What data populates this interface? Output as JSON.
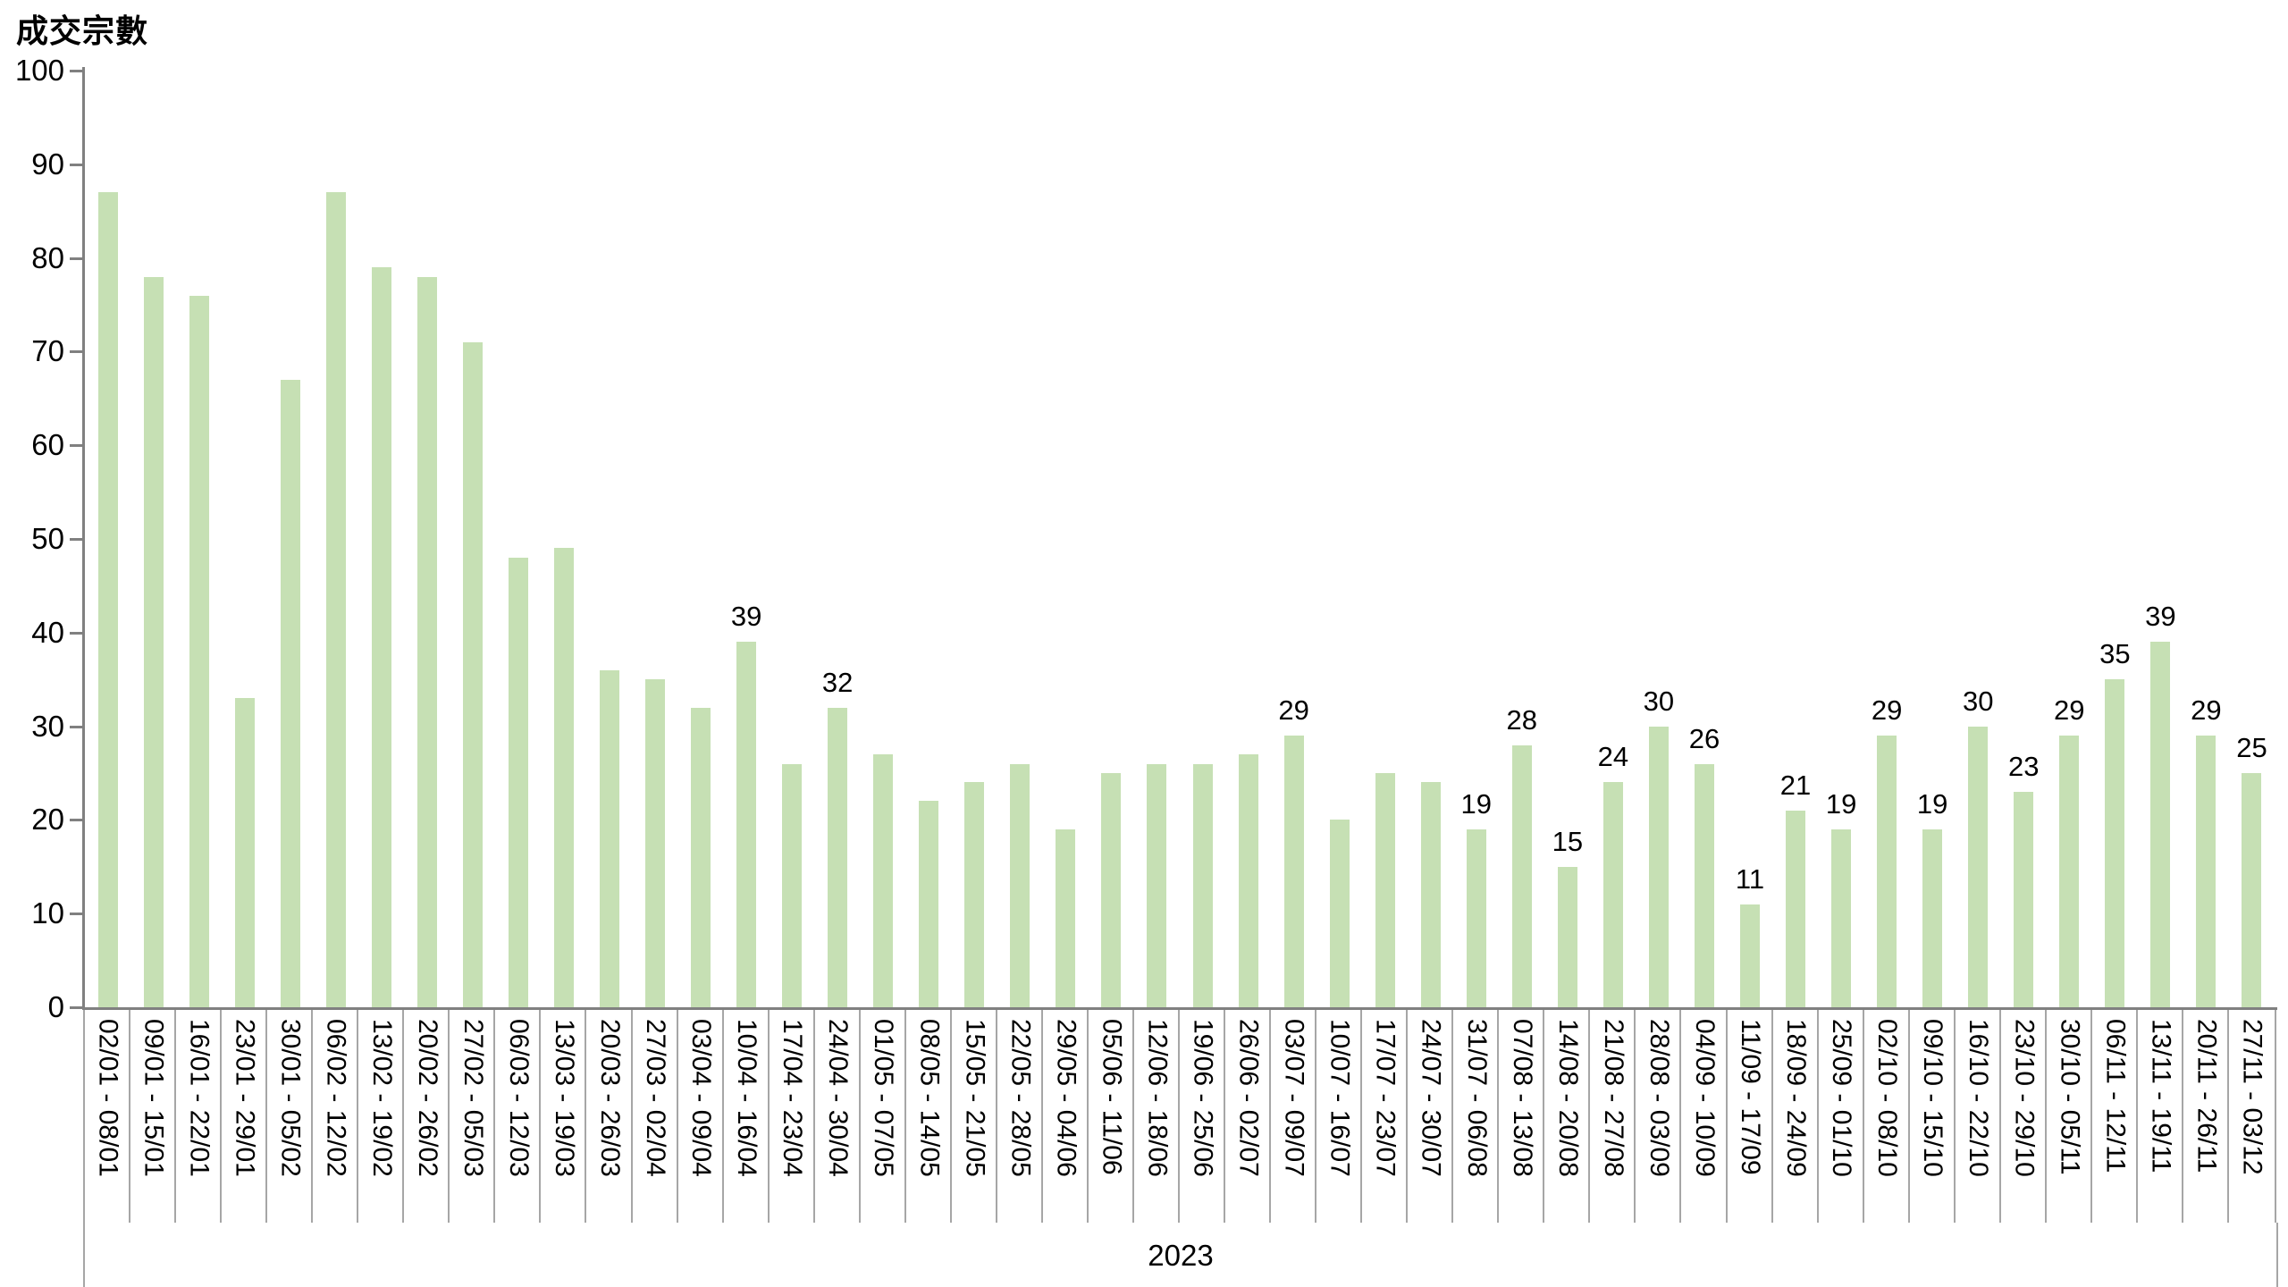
{
  "title": "成交宗數",
  "chart_data": {
    "type": "bar",
    "title": "成交宗數",
    "ylabel": "成交宗數",
    "xlabel": "2023",
    "ylim": [
      0,
      100
    ],
    "ytick_interval": 10,
    "grid": false,
    "legend": "none",
    "bar_color": "#c6e0b4",
    "axis_color": "#808080",
    "separator_color": "#a6a6a6",
    "categories": [
      "02/01 - 08/01",
      "09/01 - 15/01",
      "16/01 - 22/01",
      "23/01 - 29/01",
      "30/01 - 05/02",
      "06/02 - 12/02",
      "13/02 - 19/02",
      "20/02 - 26/02",
      "27/02 - 05/03",
      "06/03 - 12/03",
      "13/03 - 19/03",
      "20/03 - 26/03",
      "27/03 - 02/04",
      "03/04 - 09/04",
      "10/04 - 16/04",
      "17/04 - 23/04",
      "24/04 - 30/04",
      "01/05 - 07/05",
      "08/05 - 14/05",
      "15/05 - 21/05",
      "22/05 - 28/05",
      "29/05 - 04/06",
      "05/06 - 11/06",
      "12/06 - 18/06",
      "19/06 - 25/06",
      "26/06 - 02/07",
      "03/07 - 09/07",
      "10/07 - 16/07",
      "17/07 - 23/07",
      "24/07 - 30/07",
      "31/07 - 06/08",
      "07/08 - 13/08",
      "14/08 - 20/08",
      "21/08 - 27/08",
      "28/08 - 03/09",
      "04/09 - 10/09",
      "11/09 - 17/09",
      "18/09 - 24/09",
      "25/09 - 01/10",
      "02/10 - 08/10",
      "09/10 - 15/10",
      "16/10 - 22/10",
      "23/10 - 29/10",
      "30/10 - 05/11",
      "06/11 - 12/11",
      "13/11 - 19/11",
      "20/11 - 26/11",
      "27/11 - 03/12"
    ],
    "values": [
      87,
      78,
      76,
      33,
      67,
      87,
      79,
      78,
      71,
      48,
      49,
      36,
      35,
      32,
      39,
      26,
      32,
      27,
      22,
      24,
      26,
      19,
      25,
      26,
      26,
      27,
      29,
      20,
      25,
      24,
      19,
      28,
      15,
      24,
      30,
      26,
      11,
      21,
      19,
      29,
      19,
      30,
      23,
      29,
      35,
      39,
      29,
      25
    ],
    "label_shown": [
      false,
      false,
      false,
      false,
      false,
      false,
      false,
      false,
      false,
      false,
      false,
      false,
      false,
      false,
      true,
      false,
      true,
      false,
      false,
      false,
      false,
      false,
      false,
      false,
      false,
      false,
      true,
      false,
      false,
      false,
      true,
      true,
      true,
      true,
      true,
      true,
      true,
      true,
      true,
      true,
      true,
      true,
      true,
      true,
      true,
      true,
      true,
      true
    ],
    "y_tick_labels": [
      "0",
      "10",
      "20",
      "30",
      "40",
      "50",
      "60",
      "70",
      "80",
      "90",
      "100"
    ]
  },
  "x_axis": {
    "year_label": "2023"
  }
}
